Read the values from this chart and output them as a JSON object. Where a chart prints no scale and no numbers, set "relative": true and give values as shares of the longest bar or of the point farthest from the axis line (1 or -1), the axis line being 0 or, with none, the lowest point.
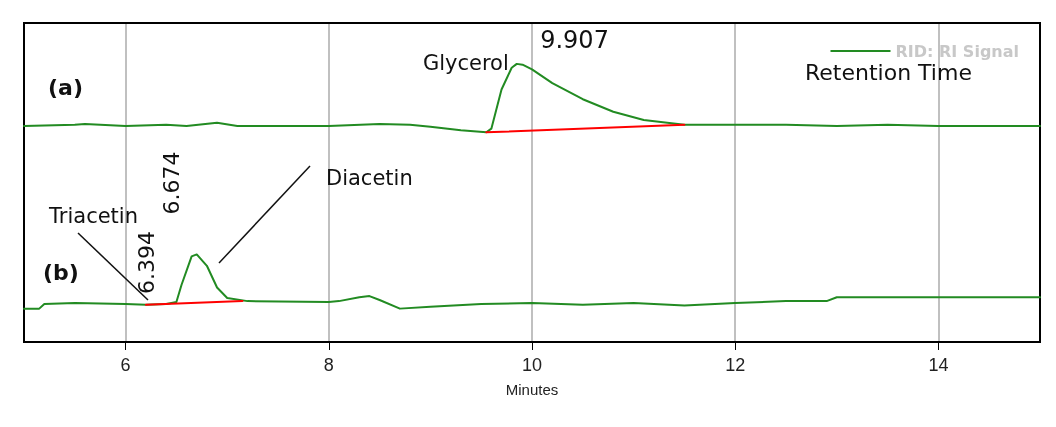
{
  "chart_data": {
    "type": "line",
    "relative": true,
    "xlabel": "Minutes",
    "xlim": [
      5,
      15
    ],
    "xticks": [
      6,
      8,
      10,
      12,
      14
    ],
    "grid": "x",
    "legend": "top right",
    "marker": "none",
    "line_style": "solid",
    "series": [
      {
        "name": "RID: RI Signal",
        "color": "#228b22",
        "x": [
          5.0,
          5.5,
          5.6,
          6.0,
          6.4,
          6.6,
          6.9,
          7.1,
          8.0,
          8.5,
          8.8,
          9.0,
          9.3,
          9.55,
          9.6,
          9.7,
          9.8,
          9.85,
          9.907,
          10.0,
          10.2,
          10.5,
          10.8,
          11.1,
          11.5,
          12.0,
          12.5,
          13.0,
          13.5,
          14.0,
          15.0
        ],
        "values": [
          0.777,
          0.781,
          0.784,
          0.777,
          0.781,
          0.777,
          0.788,
          0.777,
          0.777,
          0.784,
          0.781,
          0.774,
          0.761,
          0.754,
          0.767,
          0.908,
          0.986,
          1.0,
          0.997,
          0.98,
          0.931,
          0.873,
          0.828,
          0.798,
          0.781,
          0.781,
          0.781,
          0.777,
          0.781,
          0.777,
          0.777
        ]
      },
      {
        "color": "#228b22",
        "x": [
          5.0,
          5.15,
          5.2,
          5.5,
          6.0,
          6.2,
          6.4,
          6.5,
          6.55,
          6.65,
          6.7,
          6.8,
          6.9,
          7.0,
          7.2,
          8.0,
          8.1,
          8.3,
          8.4,
          8.5,
          8.7,
          9.0,
          9.5,
          10.0,
          10.5,
          11.0,
          11.5,
          12.0,
          12.5,
          12.9,
          13.0,
          15.0
        ],
        "values": [
          0.12,
          0.12,
          0.137,
          0.14,
          0.137,
          0.134,
          0.137,
          0.144,
          0.205,
          0.308,
          0.315,
          0.274,
          0.196,
          0.158,
          0.147,
          0.144,
          0.147,
          0.161,
          0.165,
          0.151,
          0.12,
          0.127,
          0.137,
          0.14,
          0.134,
          0.14,
          0.131,
          0.14,
          0.147,
          0.147,
          0.161,
          0.161
        ]
      },
      {
        "color": "#ff0000",
        "x": [
          9.55,
          11.5
        ],
        "values": [
          0.754,
          0.781
        ]
      },
      {
        "color": "#ff0000",
        "x": [
          6.2,
          7.15
        ],
        "values": [
          0.134,
          0.147
        ]
      }
    ],
    "annotations": [
      "(a)",
      "(b)",
      {
        "text": "Glycerol",
        "x": 9.85,
        "y": 1.0
      },
      {
        "text": "9.907",
        "x": 9.907,
        "y": 1.0
      },
      "Triacetin",
      {
        "text": "6.394",
        "x": 6.394,
        "y": 0.137
      },
      "Diacetin",
      {
        "text": "6.674",
        "x": 6.674,
        "y": 0.315
      },
      "Retention Time"
    ]
  }
}
